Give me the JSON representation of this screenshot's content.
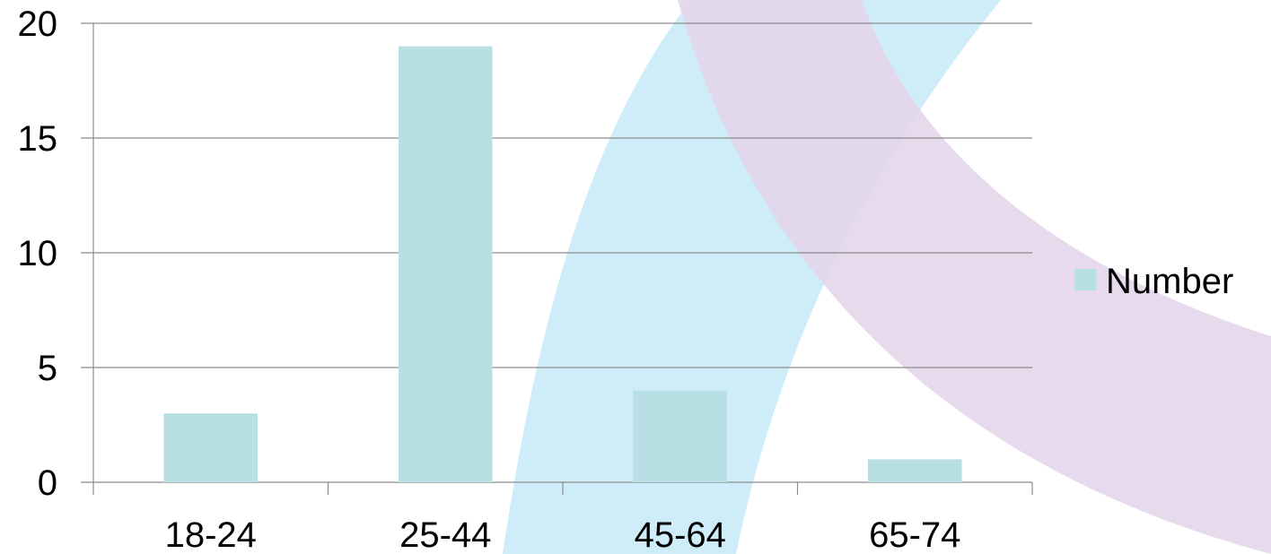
{
  "chart_data": {
    "type": "bar",
    "categories": [
      "18-24",
      "25-44",
      "45-64",
      "65-74"
    ],
    "series": [
      {
        "name": "Number",
        "values": [
          3,
          19,
          4,
          1
        ]
      }
    ],
    "ylim": [
      0,
      20
    ],
    "yticks": [
      0,
      5,
      10,
      15,
      20
    ],
    "grid": true,
    "legend_position": "right",
    "bar_color": "#b8dfe3",
    "gridline_color": "#8c8c8c",
    "decoration_colors": [
      "#c9ebf8",
      "#e4d3ea",
      "#bcbbe0"
    ]
  }
}
